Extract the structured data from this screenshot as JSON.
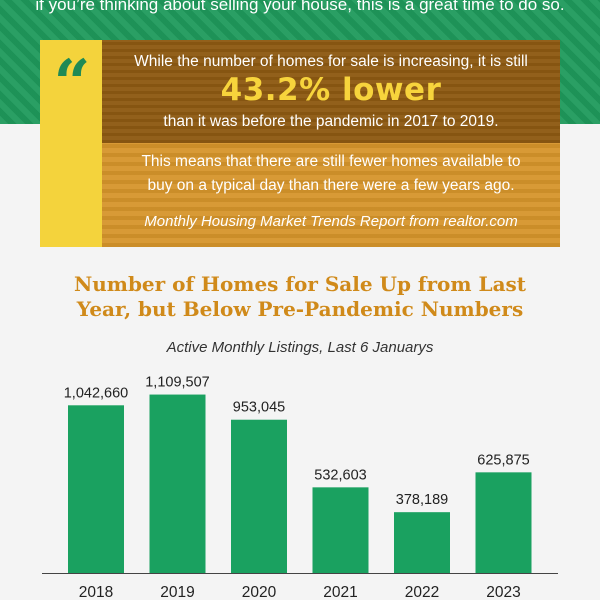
{
  "header": {
    "intro_line": "if you’re thinking about selling your house, this is a great time to do so."
  },
  "quote": {
    "mark": "“",
    "line1": "While the number of homes for sale is increasing, it is still",
    "highlight": "43.2% lower",
    "line3": "than it was before the pandemic in 2017 to 2019.",
    "line4": "This means that there are still fewer homes available to",
    "line5": "buy on a typical day than there were a few years ago.",
    "source": "Monthly Housing Market Trends Report from realtor.com"
  },
  "colors": {
    "green_band": "#1f9a5c",
    "bar": "#1aa160",
    "title": "#d08a1a",
    "quote_dark": "#8e5a12",
    "quote_light": "#d6952b",
    "quote_yellow": "#f4d33c"
  },
  "chart_data": {
    "type": "bar",
    "title_line1": "Number of Homes for Sale Up from Last",
    "title_line2": "Year, but Below Pre-Pandemic Numbers",
    "subtitle": "Active Monthly Listings, Last 6 Januarys",
    "xlabel": "",
    "ylabel": "",
    "categories": [
      "2018",
      "2019",
      "2020",
      "2021",
      "2022",
      "2023"
    ],
    "values": [
      1042660,
      1109507,
      953045,
      532603,
      378189,
      625875
    ],
    "value_labels": [
      "1,042,660",
      "1,109,507",
      "953,045",
      "532,603",
      "378,189",
      "625,875"
    ],
    "ylim": [
      0,
      1200000
    ],
    "grid": false,
    "legend": "none"
  }
}
